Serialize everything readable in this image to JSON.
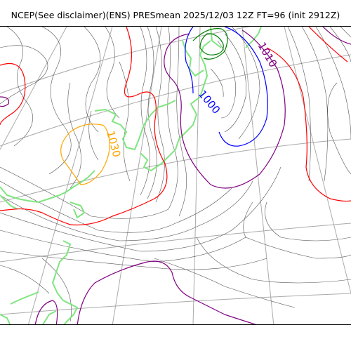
{
  "title": "NCEP(See disclaimer)(ENS) PRESmean 2025/12/03 12Z FT=96 (init 2912Z)",
  "contour_labels": [
    {
      "text": "1010",
      "color": "#800080"
    },
    {
      "text": "1000",
      "color": "#0000ff"
    },
    {
      "text": "1030",
      "color": "#ffa500"
    }
  ],
  "colors": {
    "isobar_thin": "#555555",
    "isobar_red": "#ff0000",
    "isobar_purple": "#800080",
    "isobar_blue": "#0000ff",
    "isobar_orange": "#ffa500",
    "isobar_green": "#008000",
    "coastline": "#7fe57f",
    "graticule": "#aaaaaa"
  }
}
